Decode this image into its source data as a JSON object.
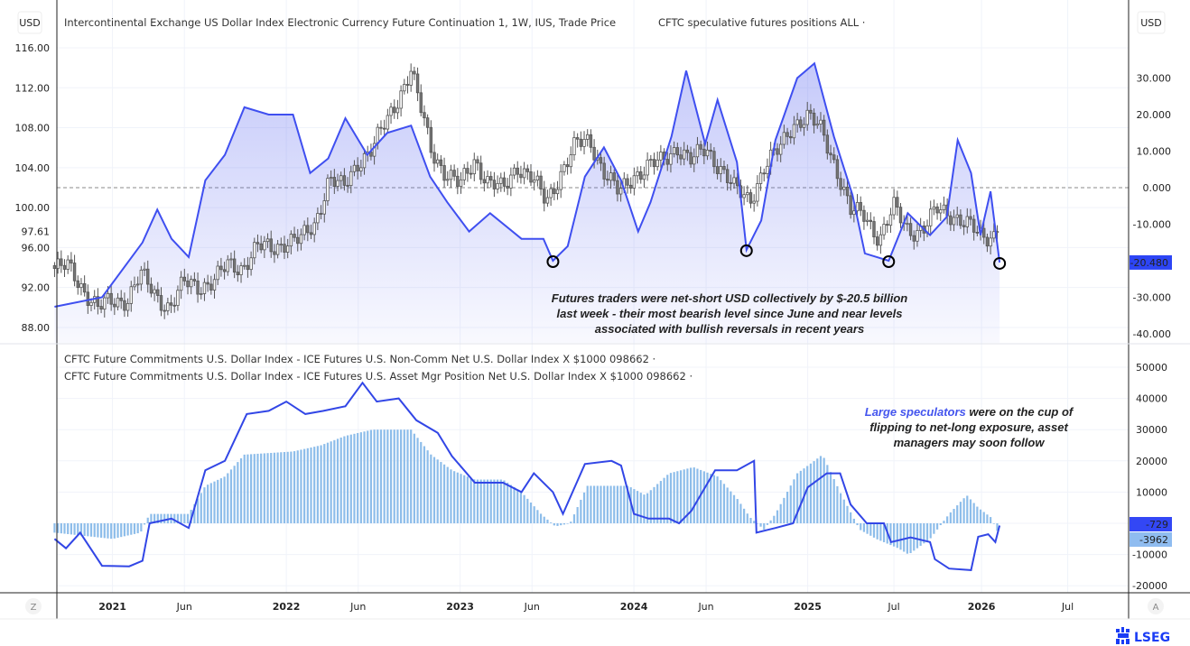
{
  "header": {
    "left_unit": "USD",
    "right_unit": "USD",
    "main_title": "Intercontinental Exchange US Dollar Index Electronic Currency Future Continuation 1, 1W, IUS, Trade Price",
    "overlay_title": "CFTC speculative futures positions ALL ·"
  },
  "lower_legend": [
    "CFTC Future Commitments U.S. Dollar Index - ICE Futures U.S. Non-Comm Net U.S. Dollar Index X $1000 098662 ·",
    "CFTC Future Commitments U.S. Dollar Index - ICE Futures U.S. Asset Mgr Position Net U.S. Dollar Index X $1000 098662 ·"
  ],
  "annotations": {
    "top": [
      "Futures traders were net-short USD collectively by $-20.5 billion",
      "last week - their most bearish level since June and near levels",
      "associated with bullish reversals in recent years"
    ],
    "bottom_highlight": "Large speculators",
    "bottom_rest_line1": " were on the cup of",
    "bottom_lines": [
      "flipping to net-long exposure, asset",
      "managers may soon follow"
    ]
  },
  "buttons": {
    "left": "Z",
    "right": "A"
  },
  "logo": {
    "text": "LSEG"
  },
  "colors": {
    "cftc_line": "#3f4ff0",
    "noncomm_line": "#3246e6",
    "asset_mgr_bars": "#8dbdea",
    "candles": "#555555",
    "highlight_text": "#4455ee",
    "logo": "#1a3cf5"
  },
  "chart_data": [
    {
      "type": "candlestick",
      "title": "Intercontinental Exchange US Dollar Index Electronic Currency Future Continuation 1, 1W, IUS, Trade Price",
      "axis": "left",
      "ylim": [
        87,
        117
      ],
      "y_ticks": [
        "116.00",
        "112.00",
        "108.00",
        "104.00",
        "100.00",
        "96.00",
        "92.00",
        "88.00"
      ],
      "last_value_label": "97.61",
      "closes": [
        [
          "2020-09-01",
          93.9
        ],
        [
          "2020-10-01",
          94.0
        ],
        [
          "2020-11-01",
          91.9
        ],
        [
          "2020-12-01",
          89.9
        ],
        [
          "2021-01-01",
          90.6
        ],
        [
          "2021-02-01",
          90.9
        ],
        [
          "2021-03-01",
          93.2
        ],
        [
          "2021-04-01",
          91.3
        ],
        [
          "2021-05-01",
          90.0
        ],
        [
          "2021-06-01",
          92.4
        ],
        [
          "2021-07-01",
          92.2
        ],
        [
          "2021-08-01",
          92.6
        ],
        [
          "2021-09-01",
          94.2
        ],
        [
          "2021-10-01",
          94.1
        ],
        [
          "2021-11-01",
          96.0
        ],
        [
          "2021-12-01",
          95.9
        ],
        [
          "2022-01-01",
          96.7
        ],
        [
          "2022-02-01",
          96.7
        ],
        [
          "2022-03-01",
          98.3
        ],
        [
          "2022-04-01",
          103.0
        ],
        [
          "2022-05-01",
          101.8
        ],
        [
          "2022-06-01",
          104.7
        ],
        [
          "2022-07-01",
          105.9
        ],
        [
          "2022-08-01",
          108.7
        ],
        [
          "2022-09-20",
          113.8
        ],
        [
          "2022-10-01",
          111.5
        ],
        [
          "2022-11-01",
          105.9
        ],
        [
          "2022-12-01",
          103.5
        ],
        [
          "2023-01-01",
          102.1
        ],
        [
          "2023-02-01",
          104.9
        ],
        [
          "2023-03-01",
          102.5
        ],
        [
          "2023-04-01",
          101.7
        ],
        [
          "2023-05-01",
          104.3
        ],
        [
          "2023-06-01",
          102.9
        ],
        [
          "2023-07-01",
          100.5
        ],
        [
          "2023-08-01",
          103.6
        ],
        [
          "2023-09-01",
          106.2
        ],
        [
          "2023-10-01",
          106.7
        ],
        [
          "2023-11-01",
          103.5
        ],
        [
          "2023-12-01",
          101.3
        ],
        [
          "2024-01-01",
          103.3
        ],
        [
          "2024-02-01",
          104.2
        ],
        [
          "2024-03-01",
          104.5
        ],
        [
          "2024-04-01",
          106.2
        ],
        [
          "2024-05-01",
          104.6
        ],
        [
          "2024-06-01",
          105.9
        ],
        [
          "2024-07-01",
          104.1
        ],
        [
          "2024-08-01",
          101.7
        ],
        [
          "2024-09-01",
          100.8
        ],
        [
          "2024-10-01",
          104.0
        ],
        [
          "2024-11-01",
          105.7
        ],
        [
          "2024-12-01",
          108.5
        ],
        [
          "2025-01-01",
          109.0
        ],
        [
          "2025-02-01",
          107.6
        ],
        [
          "2025-03-01",
          104.2
        ],
        [
          "2025-04-01",
          99.5
        ],
        [
          "2025-05-01",
          99.3
        ],
        [
          "2025-06-01",
          96.9
        ],
        [
          "2025-07-01",
          99.9
        ],
        [
          "2025-08-01",
          97.8
        ],
        [
          "2025-09-01",
          97.8
        ],
        [
          "2025-10-01",
          99.8
        ],
        [
          "2025-11-01",
          99.4
        ],
        [
          "2025-12-01",
          98.3
        ],
        [
          "2026-01-01",
          97.0
        ],
        [
          "2026-02-08",
          97.61
        ]
      ]
    },
    {
      "type": "area",
      "title": "CFTC speculative futures positions ALL",
      "axis": "right",
      "ylim": [
        -42,
        38
      ],
      "y_ticks": [
        "30.000",
        "20.000",
        "10.000",
        "0.000",
        "-10.000",
        "-30.000",
        "-40.000"
      ],
      "zero_line": "dashed",
      "last_value_label": "-20.480",
      "circled_lows": [
        "2023-07-15",
        "2024-08-25",
        "2025-06-20",
        "2026-02-08"
      ],
      "points": [
        [
          "2020-09-01",
          -32.6
        ],
        [
          "2020-12-10",
          -30
        ],
        [
          "2021-03-05",
          -15
        ],
        [
          "2021-04-05",
          -6
        ],
        [
          "2021-05-05",
          -14
        ],
        [
          "2021-06-10",
          -19
        ],
        [
          "2021-07-15",
          2
        ],
        [
          "2021-08-25",
          9
        ],
        [
          "2021-10-05",
          22
        ],
        [
          "2021-11-25",
          20
        ],
        [
          "2022-01-15",
          20
        ],
        [
          "2022-02-20",
          4
        ],
        [
          "2022-03-30",
          8
        ],
        [
          "2022-05-05",
          19
        ],
        [
          "2022-06-20",
          9
        ],
        [
          "2022-08-01",
          15
        ],
        [
          "2022-09-20",
          17
        ],
        [
          "2022-10-30",
          3
        ],
        [
          "2022-12-05",
          -4
        ],
        [
          "2023-01-20",
          -12
        ],
        [
          "2023-03-05",
          -7
        ],
        [
          "2023-05-10",
          -14
        ],
        [
          "2023-06-25",
          -14
        ],
        [
          "2023-07-15",
          -20
        ],
        [
          "2023-08-15",
          -16
        ],
        [
          "2023-09-20",
          3
        ],
        [
          "2023-10-30",
          11
        ],
        [
          "2023-12-05",
          2
        ],
        [
          "2024-01-10",
          -12
        ],
        [
          "2024-02-05",
          -4
        ],
        [
          "2024-03-20",
          14
        ],
        [
          "2024-04-20",
          32
        ],
        [
          "2024-05-30",
          12
        ],
        [
          "2024-06-25",
          24
        ],
        [
          "2024-08-05",
          7
        ],
        [
          "2024-08-25",
          -17
        ],
        [
          "2024-09-25",
          -9
        ],
        [
          "2024-10-25",
          13
        ],
        [
          "2024-12-10",
          30
        ],
        [
          "2025-01-15",
          34
        ],
        [
          "2025-02-25",
          14
        ],
        [
          "2025-04-05",
          -2
        ],
        [
          "2025-05-01",
          -18
        ],
        [
          "2025-06-20",
          -20
        ],
        [
          "2025-07-30",
          -7
        ],
        [
          "2025-09-15",
          -13
        ],
        [
          "2025-10-20",
          -8
        ],
        [
          "2025-11-12",
          13
        ],
        [
          "2025-12-10",
          4
        ],
        [
          "2025-12-30",
          -13
        ],
        [
          "2026-01-20",
          -1
        ],
        [
          "2026-02-08",
          -20.48
        ]
      ]
    },
    {
      "type": "line",
      "title": "CFTC Future Commitments U.S. Dollar Index - ICE Futures U.S. Non-Comm Net U.S. Dollar Index X $1000 098662",
      "axis": "right-lower",
      "ylim": [
        -22000,
        56000
      ],
      "y_ticks": [
        "50000",
        "40000",
        "30000",
        "20000",
        "10000",
        "-10000",
        "-20000"
      ],
      "last_value_label": "-729",
      "points": [
        [
          "2020-09-01",
          -5000
        ],
        [
          "2020-09-25",
          -8000
        ],
        [
          "2020-10-25",
          -3000
        ],
        [
          "2020-12-10",
          -13600
        ],
        [
          "2021-02-05",
          -13800
        ],
        [
          "2021-03-05",
          -12000
        ],
        [
          "2021-03-20",
          0
        ],
        [
          "2021-05-05",
          1500
        ],
        [
          "2021-06-10",
          -1500
        ],
        [
          "2021-07-15",
          17000
        ],
        [
          "2021-08-25",
          20000
        ],
        [
          "2021-10-10",
          35000
        ],
        [
          "2021-11-25",
          36000
        ],
        [
          "2022-01-01",
          39000
        ],
        [
          "2022-02-10",
          35000
        ],
        [
          "2022-03-20",
          36000
        ],
        [
          "2022-05-05",
          37500
        ],
        [
          "2022-06-10",
          45000
        ],
        [
          "2022-07-10",
          39000
        ],
        [
          "2022-08-25",
          40000
        ],
        [
          "2022-10-01",
          33000
        ],
        [
          "2022-11-15",
          29000
        ],
        [
          "2022-12-15",
          21500
        ],
        [
          "2023-02-01",
          13000
        ],
        [
          "2023-04-01",
          13000
        ],
        [
          "2023-05-10",
          10000
        ],
        [
          "2023-06-05",
          16000
        ],
        [
          "2023-07-15",
          10000
        ],
        [
          "2023-08-05",
          3000
        ],
        [
          "2023-09-20",
          19000
        ],
        [
          "2023-11-15",
          20000
        ],
        [
          "2023-12-05",
          18500
        ],
        [
          "2024-01-01",
          3000
        ],
        [
          "2024-02-01",
          1500
        ],
        [
          "2024-03-15",
          1500
        ],
        [
          "2024-04-05",
          0
        ],
        [
          "2024-05-01",
          4000
        ],
        [
          "2024-06-20",
          17000
        ],
        [
          "2024-08-05",
          17000
        ],
        [
          "2024-09-10",
          20000
        ],
        [
          "2024-09-15",
          -3000
        ],
        [
          "2024-10-25",
          -1500
        ],
        [
          "2024-12-01",
          0
        ],
        [
          "2025-01-01",
          11500
        ],
        [
          "2025-02-10",
          16000
        ],
        [
          "2025-03-10",
          16000
        ],
        [
          "2025-04-01",
          6000
        ],
        [
          "2025-05-05",
          0
        ],
        [
          "2025-06-10",
          0
        ],
        [
          "2025-06-25",
          -6000
        ],
        [
          "2025-08-05",
          -4500
        ],
        [
          "2025-09-15",
          -6000
        ],
        [
          "2025-09-25",
          -11500
        ],
        [
          "2025-10-25",
          -14500
        ],
        [
          "2025-12-10",
          -15000
        ],
        [
          "2025-12-25",
          -4300
        ],
        [
          "2026-01-15",
          -3500
        ],
        [
          "2026-01-30",
          -6000
        ],
        [
          "2026-02-08",
          -729
        ]
      ]
    },
    {
      "type": "bar",
      "title": "CFTC Future Commitments U.S. Dollar Index - ICE Futures U.S. Asset Mgr Position Net U.S. Dollar Index X $1000 098662",
      "axis": "right-lower",
      "ylim": [
        -22000,
        56000
      ],
      "last_value_label": "-3962",
      "points": [
        [
          "2020-09-01",
          -3000
        ],
        [
          "2020-11-01",
          -4000
        ],
        [
          "2021-01-01",
          -5000
        ],
        [
          "2021-03-01",
          -3000
        ],
        [
          "2021-03-20",
          3000
        ],
        [
          "2021-06-10",
          3000
        ],
        [
          "2021-07-15",
          12000
        ],
        [
          "2021-08-25",
          15000
        ],
        [
          "2021-10-05",
          22000
        ],
        [
          "2022-01-15",
          23000
        ],
        [
          "2022-03-15",
          25000
        ],
        [
          "2022-05-05",
          28000
        ],
        [
          "2022-07-01",
          30000
        ],
        [
          "2022-09-20",
          30000
        ],
        [
          "2022-11-01",
          22000
        ],
        [
          "2022-12-15",
          17000
        ],
        [
          "2023-02-01",
          14000
        ],
        [
          "2023-04-01",
          14000
        ],
        [
          "2023-05-10",
          10000
        ],
        [
          "2023-06-20",
          3000
        ],
        [
          "2023-07-20",
          -1000
        ],
        [
          "2023-08-20",
          0
        ],
        [
          "2023-09-25",
          12000
        ],
        [
          "2023-12-20",
          12000
        ],
        [
          "2024-01-25",
          9000
        ],
        [
          "2024-03-15",
          16000
        ],
        [
          "2024-05-05",
          18000
        ],
        [
          "2024-06-25",
          15000
        ],
        [
          "2024-08-05",
          8000
        ],
        [
          "2024-09-01",
          2000
        ],
        [
          "2024-10-01",
          -2000
        ],
        [
          "2024-10-25",
          3000
        ],
        [
          "2024-12-10",
          16000
        ],
        [
          "2025-01-15",
          20000
        ],
        [
          "2025-02-01",
          22000
        ],
        [
          "2025-03-10",
          10000
        ],
        [
          "2025-04-20",
          -2000
        ],
        [
          "2025-05-25",
          -5000
        ],
        [
          "2025-07-10",
          -8000
        ],
        [
          "2025-08-01",
          -10000
        ],
        [
          "2025-09-15",
          -5000
        ],
        [
          "2025-10-25",
          3000
        ],
        [
          "2025-12-01",
          9000
        ],
        [
          "2025-12-25",
          5000
        ],
        [
          "2026-01-20",
          2000
        ],
        [
          "2026-02-08",
          -3962
        ]
      ]
    }
  ],
  "x_axis": {
    "ticks": [
      [
        "2021-01-01",
        "2021",
        true
      ],
      [
        "2021-06-01",
        "Jun",
        false
      ],
      [
        "2022-01-01",
        "2022",
        true
      ],
      [
        "2022-06-01",
        "Jun",
        false
      ],
      [
        "2023-01-01",
        "2023",
        true
      ],
      [
        "2023-06-01",
        "Jun",
        false
      ],
      [
        "2024-01-01",
        "2024",
        true
      ],
      [
        "2024-06-01",
        "Jun",
        false
      ],
      [
        "2025-01-01",
        "2025",
        true
      ],
      [
        "2025-07-01",
        "Jul",
        false
      ],
      [
        "2026-01-01",
        "2026",
        true
      ],
      [
        "2026-07-01",
        "Jul",
        false
      ]
    ]
  }
}
